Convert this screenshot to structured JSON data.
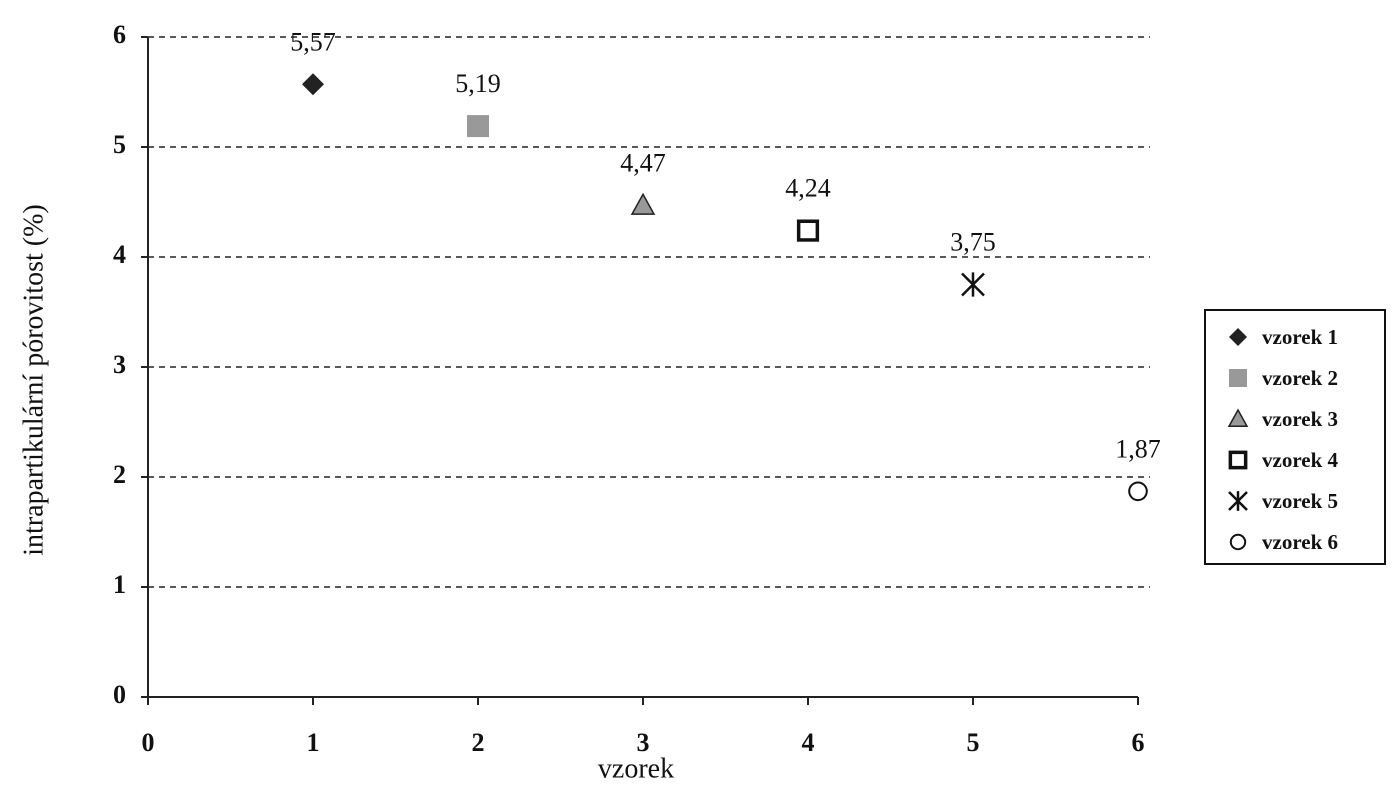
{
  "chart_data": {
    "type": "scatter",
    "x_label": "vzorek",
    "y_label": "intrapartikulární pórovitost (%)",
    "xlim": [
      0,
      6
    ],
    "ylim": [
      0,
      6
    ],
    "xticks": [
      0,
      1,
      2,
      3,
      4,
      5,
      6
    ],
    "yticks": [
      0,
      1,
      2,
      3,
      4,
      5,
      6
    ],
    "grid": true,
    "legend": "right",
    "series": [
      {
        "name": "vzorek 1",
        "color": "#222222",
        "marker": "diamond",
        "x": [
          1
        ],
        "values": [
          5.57
        ],
        "value_labels": [
          "5,57"
        ]
      },
      {
        "name": "vzorek 2",
        "color": "#999999",
        "marker": "square",
        "x": [
          2
        ],
        "values": [
          5.19
        ],
        "value_labels": [
          "5,19"
        ]
      },
      {
        "name": "vzorek 3",
        "color": "#999999",
        "marker": "triangle",
        "x": [
          3
        ],
        "values": [
          4.47
        ],
        "value_labels": [
          "4,47"
        ]
      },
      {
        "name": "vzorek 4",
        "color": "#111111",
        "marker": "square-open",
        "x": [
          4
        ],
        "values": [
          4.24
        ],
        "value_labels": [
          "4,24"
        ]
      },
      {
        "name": "vzorek 5",
        "color": "#111111",
        "marker": "asterisk",
        "x": [
          5
        ],
        "values": [
          3.75
        ],
        "value_labels": [
          "3,75"
        ]
      },
      {
        "name": "vzorek 6",
        "color": "#111111",
        "marker": "circle-open",
        "x": [
          6
        ],
        "values": [
          1.87
        ],
        "value_labels": [
          "1,87"
        ]
      }
    ]
  }
}
